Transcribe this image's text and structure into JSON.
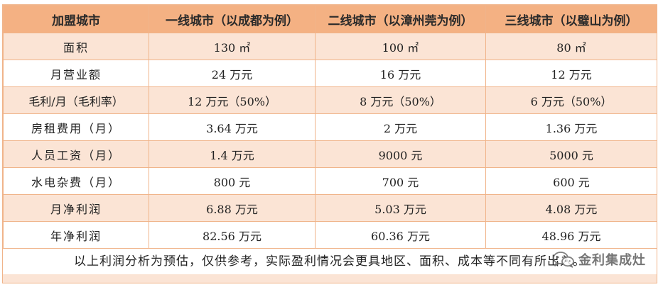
{
  "table": {
    "headers": [
      "加盟城市",
      "一线城市（以成都为例）",
      "二线城市（以漳州莞为例）",
      "三线城市（以璧山为例）"
    ],
    "rows": [
      {
        "label": "面积",
        "values": [
          "130 ㎡",
          "100 ㎡",
          "80 ㎡"
        ]
      },
      {
        "label": "月营业额",
        "values": [
          "24 万元",
          "16 万元",
          "12 万元"
        ]
      },
      {
        "label": "毛利/月（毛利率）",
        "values": [
          "12 万元（50%）",
          "8 万元（50%）",
          "6 万元（50%）"
        ]
      },
      {
        "label": "房租费用（月）",
        "values": [
          "3.64 万元",
          "2 万元",
          "1.36 万元"
        ]
      },
      {
        "label": "人员工资（月）",
        "values": [
          "1.4 万元",
          "9000 元",
          "5000 元"
        ]
      },
      {
        "label": "水电杂费（月）",
        "values": [
          "800 元",
          "700 元",
          "600 元"
        ]
      },
      {
        "label": "月净利润",
        "values": [
          "6.88 万元",
          "5.03 万元",
          "4.08 万元"
        ]
      },
      {
        "label": "年净利润",
        "values": [
          "82.56 万元",
          "60.36 万元",
          "48.96 万元"
        ]
      }
    ]
  },
  "footnote": "以上利润分析为预估，仅供参考，实际盈利情况会更具地区、面积、成本等不同有所出入。",
  "watermark": {
    "icon": "wechat-icon",
    "text": "金利集成灶"
  },
  "colors": {
    "header_bg": "#f4b183",
    "band_bg": "#fbe4d5",
    "border": "#f0b48a"
  }
}
